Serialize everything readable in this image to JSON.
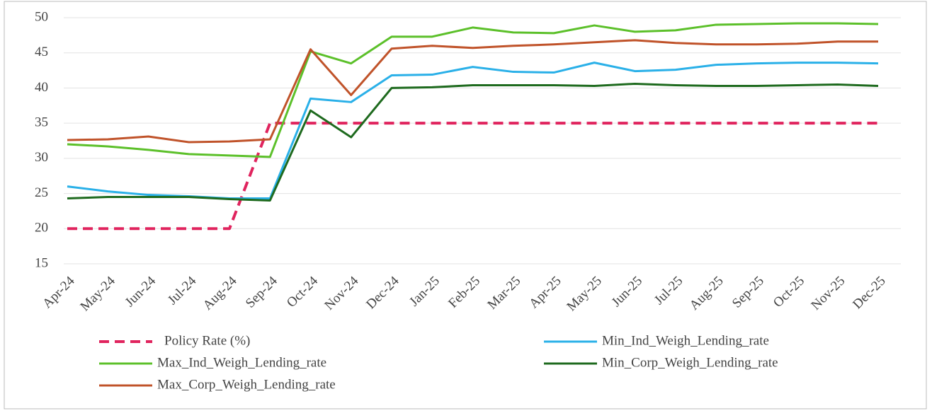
{
  "chart_data": {
    "type": "line",
    "categories": [
      "Apr-24",
      "May-24",
      "Jun-24",
      "Jul-24",
      "Aug-24",
      "Sep-24",
      "Oct-24",
      "Nov-24",
      "Dec-24",
      "Jan-25",
      "Feb-25",
      "Mar-25",
      "Apr-25",
      "May-25",
      "Jun-25",
      "Jul-25",
      "Aug-25",
      "Sep-25",
      "Oct-25",
      "Nov-25",
      "Dec-25"
    ],
    "series": [
      {
        "name": "Policy Rate (%)",
        "color": "#e0245e",
        "dashed": true,
        "values": [
          20,
          20,
          20,
          20,
          20,
          35,
          35,
          35,
          35,
          35,
          35,
          35,
          35,
          35,
          35,
          35,
          35,
          35,
          35,
          35,
          35
        ]
      },
      {
        "name": "Min_Ind_Weigh_Lending_rate",
        "color": "#2ab0e8",
        "values": [
          26,
          25.3,
          24.8,
          24.6,
          24.3,
          24.3,
          38.5,
          38,
          41.8,
          41.9,
          43,
          42.3,
          42.2,
          43.6,
          42.4,
          42.6,
          43.3,
          43.5,
          43.6,
          43.6,
          43.5
        ]
      },
      {
        "name": "Max_Ind_Weigh_Lending_rate",
        "color": "#5cc02a",
        "values": [
          32,
          31.7,
          31.2,
          30.6,
          30.4,
          30.2,
          45.2,
          43.5,
          47.3,
          47.3,
          48.6,
          47.9,
          47.8,
          48.9,
          48,
          48.2,
          49,
          49.1,
          49.2,
          49.2,
          49.1
        ]
      },
      {
        "name": "Min_Corp_Weigh_Lending_rate",
        "color": "#1e6a1e",
        "values": [
          24.3,
          24.5,
          24.5,
          24.5,
          24.2,
          24,
          36.8,
          33,
          40,
          40.1,
          40.4,
          40.4,
          40.4,
          40.3,
          40.6,
          40.4,
          40.3,
          40.3,
          40.4,
          40.5,
          40.3
        ]
      },
      {
        "name": "Max_Corp_Weigh_Lending_rate",
        "color": "#c0532a",
        "values": [
          32.6,
          32.7,
          33.1,
          32.3,
          32.4,
          32.7,
          45.5,
          39,
          45.6,
          46,
          45.7,
          46,
          46.2,
          46.5,
          46.8,
          46.4,
          46.2,
          46.2,
          46.3,
          46.6,
          46.6
        ]
      }
    ],
    "ylim": [
      15,
      50
    ],
    "yticks": [
      15,
      20,
      25,
      30,
      35,
      40,
      45,
      50
    ],
    "grid": true
  }
}
